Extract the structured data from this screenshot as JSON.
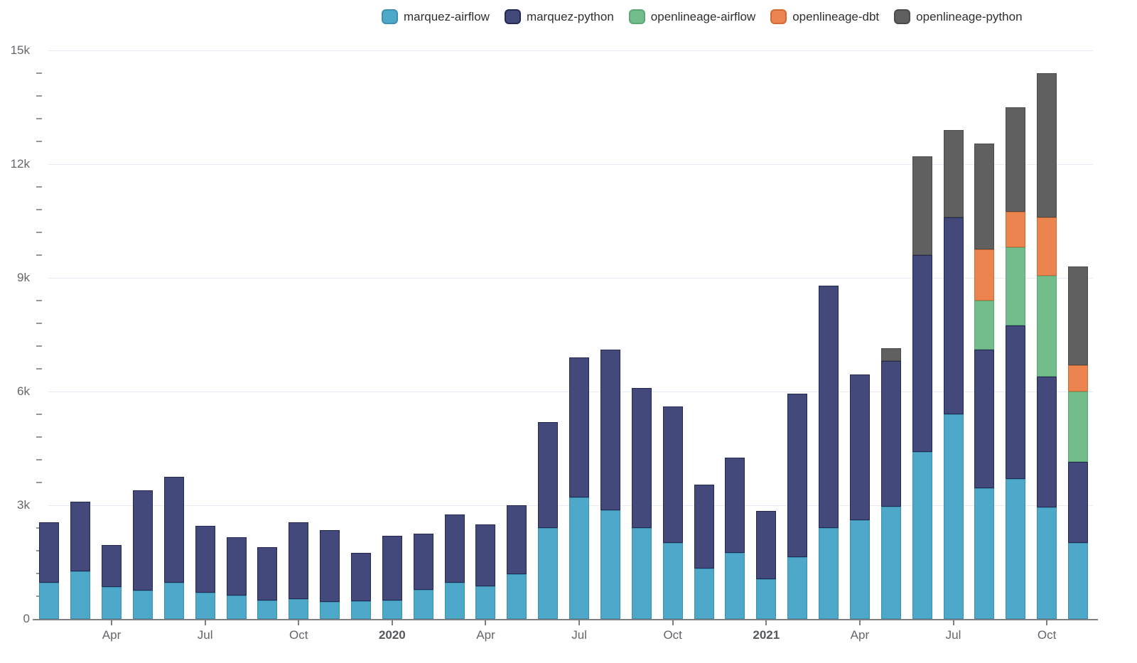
{
  "chart_data": {
    "type": "bar",
    "stacked": true,
    "title": "",
    "xlabel": "",
    "ylabel": "",
    "grid": "horizontal",
    "legend_position": "top",
    "ylim": [
      0,
      15000
    ],
    "y_major_ticks": [
      {
        "value": 0,
        "label": "0"
      },
      {
        "value": 3000,
        "label": "3k"
      },
      {
        "value": 6000,
        "label": "6k"
      },
      {
        "value": 9000,
        "label": "9k"
      },
      {
        "value": 12000,
        "label": "12k"
      },
      {
        "value": 15000,
        "label": "15k"
      }
    ],
    "y_minor_step": 600,
    "x": [
      "Feb 2019",
      "Mar 2019",
      "Apr 2019",
      "May 2019",
      "Jun 2019",
      "Jul 2019",
      "Aug 2019",
      "Sep 2019",
      "Oct 2019",
      "Nov 2019",
      "Dec 2019",
      "Jan 2020",
      "Feb 2020",
      "Mar 2020",
      "Apr 2020",
      "May 2020",
      "Jun 2020",
      "Jul 2020",
      "Aug 2020",
      "Sep 2020",
      "Oct 2020",
      "Nov 2020",
      "Dec 2020",
      "Jan 2021",
      "Feb 2021",
      "Mar 2021",
      "Apr 2021",
      "May 2021",
      "Jun 2021",
      "Jul 2021",
      "Aug 2021",
      "Sep 2021",
      "Oct 2021",
      "Nov 2021"
    ],
    "x_ticks": [
      {
        "label": "Apr",
        "index": 2,
        "bold": false
      },
      {
        "label": "Jul",
        "index": 5,
        "bold": false
      },
      {
        "label": "Oct",
        "index": 8,
        "bold": false
      },
      {
        "label": "2020",
        "index": 11,
        "bold": true
      },
      {
        "label": "Apr",
        "index": 14,
        "bold": false
      },
      {
        "label": "Jul",
        "index": 17,
        "bold": false
      },
      {
        "label": "Oct",
        "index": 20,
        "bold": false
      },
      {
        "label": "2021",
        "index": 23,
        "bold": true
      },
      {
        "label": "Apr",
        "index": 26,
        "bold": false
      },
      {
        "label": "Jul",
        "index": 29,
        "bold": false
      },
      {
        "label": "Oct",
        "index": 32,
        "bold": false
      }
    ],
    "series": [
      {
        "name": "marquez-airflow",
        "color": "#4DA8C9",
        "border_color": "#3E90B0",
        "values": [
          950,
          1250,
          850,
          750,
          950,
          700,
          620,
          480,
          530,
          450,
          470,
          480,
          760,
          950,
          870,
          1180,
          2400,
          3200,
          2870,
          2400,
          2000,
          1330,
          1750,
          1050,
          1630,
          2400,
          2600,
          2970,
          4400,
          5400,
          3450,
          3700,
          2950,
          2000
        ]
      },
      {
        "name": "marquez-python",
        "color": "#44497B",
        "border_color": "#232950",
        "values": [
          1600,
          1850,
          1100,
          2650,
          2800,
          1750,
          1530,
          1420,
          2020,
          1900,
          1280,
          1720,
          1490,
          1800,
          1630,
          1820,
          2800,
          3700,
          4230,
          3700,
          3600,
          2220,
          2500,
          1800,
          4320,
          6400,
          3850,
          3830,
          5200,
          5200,
          3650,
          4050,
          3450,
          2150
        ]
      },
      {
        "name": "openlineage-airflow",
        "color": "#72BD8B",
        "border_color": "#5BA876",
        "values": [
          0,
          0,
          0,
          0,
          0,
          0,
          0,
          0,
          0,
          0,
          0,
          0,
          0,
          0,
          0,
          0,
          0,
          0,
          0,
          0,
          0,
          0,
          0,
          0,
          0,
          0,
          0,
          0,
          0,
          0,
          1300,
          2050,
          2650,
          1850
        ]
      },
      {
        "name": "openlineage-dbt",
        "color": "#EC8450",
        "border_color": "#D06A34",
        "values": [
          0,
          0,
          0,
          0,
          0,
          0,
          0,
          0,
          0,
          0,
          0,
          0,
          0,
          0,
          0,
          0,
          0,
          0,
          0,
          0,
          0,
          0,
          0,
          0,
          0,
          0,
          0,
          0,
          0,
          0,
          1350,
          950,
          1550,
          700
        ]
      },
      {
        "name": "openlineage-python",
        "color": "#606060",
        "border_color": "#4A4A4A",
        "values": [
          0,
          0,
          0,
          0,
          0,
          0,
          0,
          0,
          0,
          0,
          0,
          0,
          0,
          0,
          0,
          0,
          0,
          0,
          0,
          0,
          0,
          0,
          0,
          0,
          0,
          0,
          0,
          350,
          2600,
          2300,
          2800,
          2750,
          3800,
          2600
        ]
      }
    ]
  },
  "legend": {
    "items": [
      "marquez-airflow",
      "marquez-python",
      "openlineage-airflow",
      "openlineage-dbt",
      "openlineage-python"
    ]
  },
  "axis_colors": {
    "gridline": "#e8ebf4",
    "tick_label": "#63666b",
    "axis_line": "#7d7f83"
  }
}
